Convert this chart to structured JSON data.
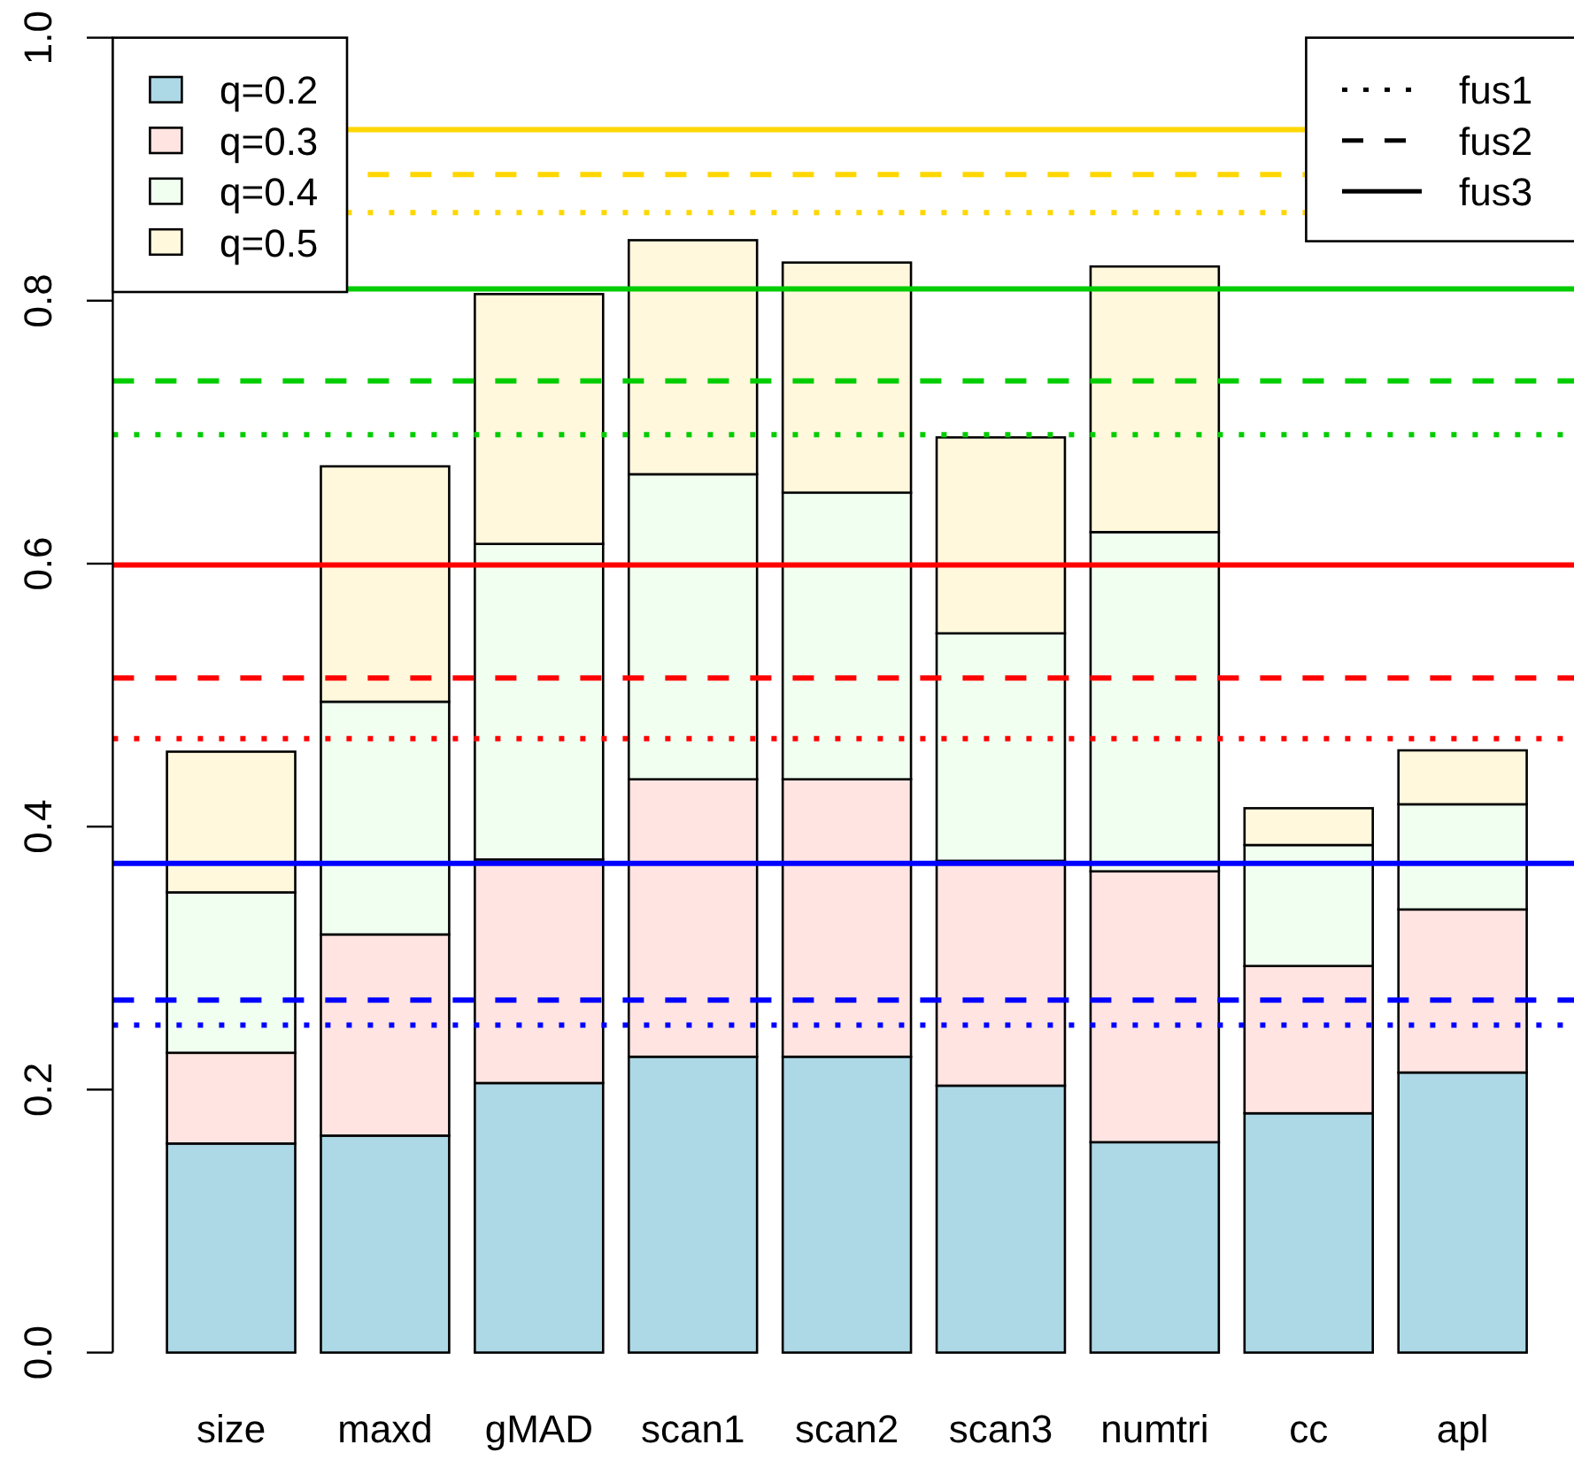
{
  "chart_data": {
    "type": "bar",
    "stacked": true,
    "categories": [
      "size",
      "maxd",
      "gMAD",
      "scan1",
      "scan2",
      "scan3",
      "numtri",
      "cc",
      "apl"
    ],
    "series": [
      {
        "name": "q=0.2",
        "color": "#add8e6",
        "values": [
          0.159,
          0.165,
          0.205,
          0.225,
          0.225,
          0.203,
          0.16,
          0.182,
          0.213
        ]
      },
      {
        "name": "q=0.3",
        "color": "#ffe4e1",
        "values": [
          0.069,
          0.153,
          0.17,
          0.211,
          0.211,
          0.171,
          0.206,
          0.112,
          0.124
        ]
      },
      {
        "name": "q=0.4",
        "color": "#f0fff0",
        "values": [
          0.122,
          0.177,
          0.24,
          0.232,
          0.218,
          0.173,
          0.258,
          0.092,
          0.08
        ]
      },
      {
        "name": "q=0.5",
        "color": "#fff8dc",
        "values": [
          0.107,
          0.179,
          0.19,
          0.178,
          0.175,
          0.149,
          0.202,
          0.028,
          0.041
        ]
      }
    ],
    "ylim": [
      0,
      1
    ],
    "yticks": [
      {
        "value": 0,
        "label": "0.0"
      },
      0.2,
      0.4,
      0.6,
      0.8,
      {
        "value": 1,
        "label": "1.0"
      }
    ],
    "legend": "top left",
    "annotations": [
      "fus1",
      "fus2",
      "fus3"
    ],
    "ref_lines": [
      {
        "axis": "y",
        "value": 0.867,
        "color": "#ffd700",
        "line_style": "dotted"
      },
      {
        "axis": "y",
        "value": 0.896,
        "color": "#ffd700",
        "line_style": "dashed"
      },
      {
        "axis": "y",
        "value": 0.93,
        "color": "#ffd700",
        "line_style": "solid"
      },
      {
        "axis": "y",
        "value": 0.698,
        "color": "#00cd00",
        "line_style": "dotted"
      },
      {
        "axis": "y",
        "value": 0.739,
        "color": "#00cd00",
        "line_style": "dashed"
      },
      {
        "axis": "y",
        "value": 0.809,
        "color": "#00cd00",
        "line_style": "solid"
      },
      {
        "axis": "y",
        "value": 0.467,
        "color": "#ff0000",
        "line_style": "dotted"
      },
      {
        "axis": "y",
        "value": 0.513,
        "color": "#ff0000",
        "line_style": "dashed"
      },
      {
        "axis": "y",
        "value": 0.599,
        "color": "#ff0000",
        "line_style": "solid"
      },
      {
        "axis": "y",
        "value": 0.249,
        "color": "#0000ff",
        "line_style": "dotted"
      },
      {
        "axis": "y",
        "value": 0.268,
        "color": "#0000ff",
        "line_style": "dashed"
      },
      {
        "axis": "y",
        "value": 0.372,
        "color": "#0000ff",
        "line_style": "solid"
      }
    ]
  }
}
